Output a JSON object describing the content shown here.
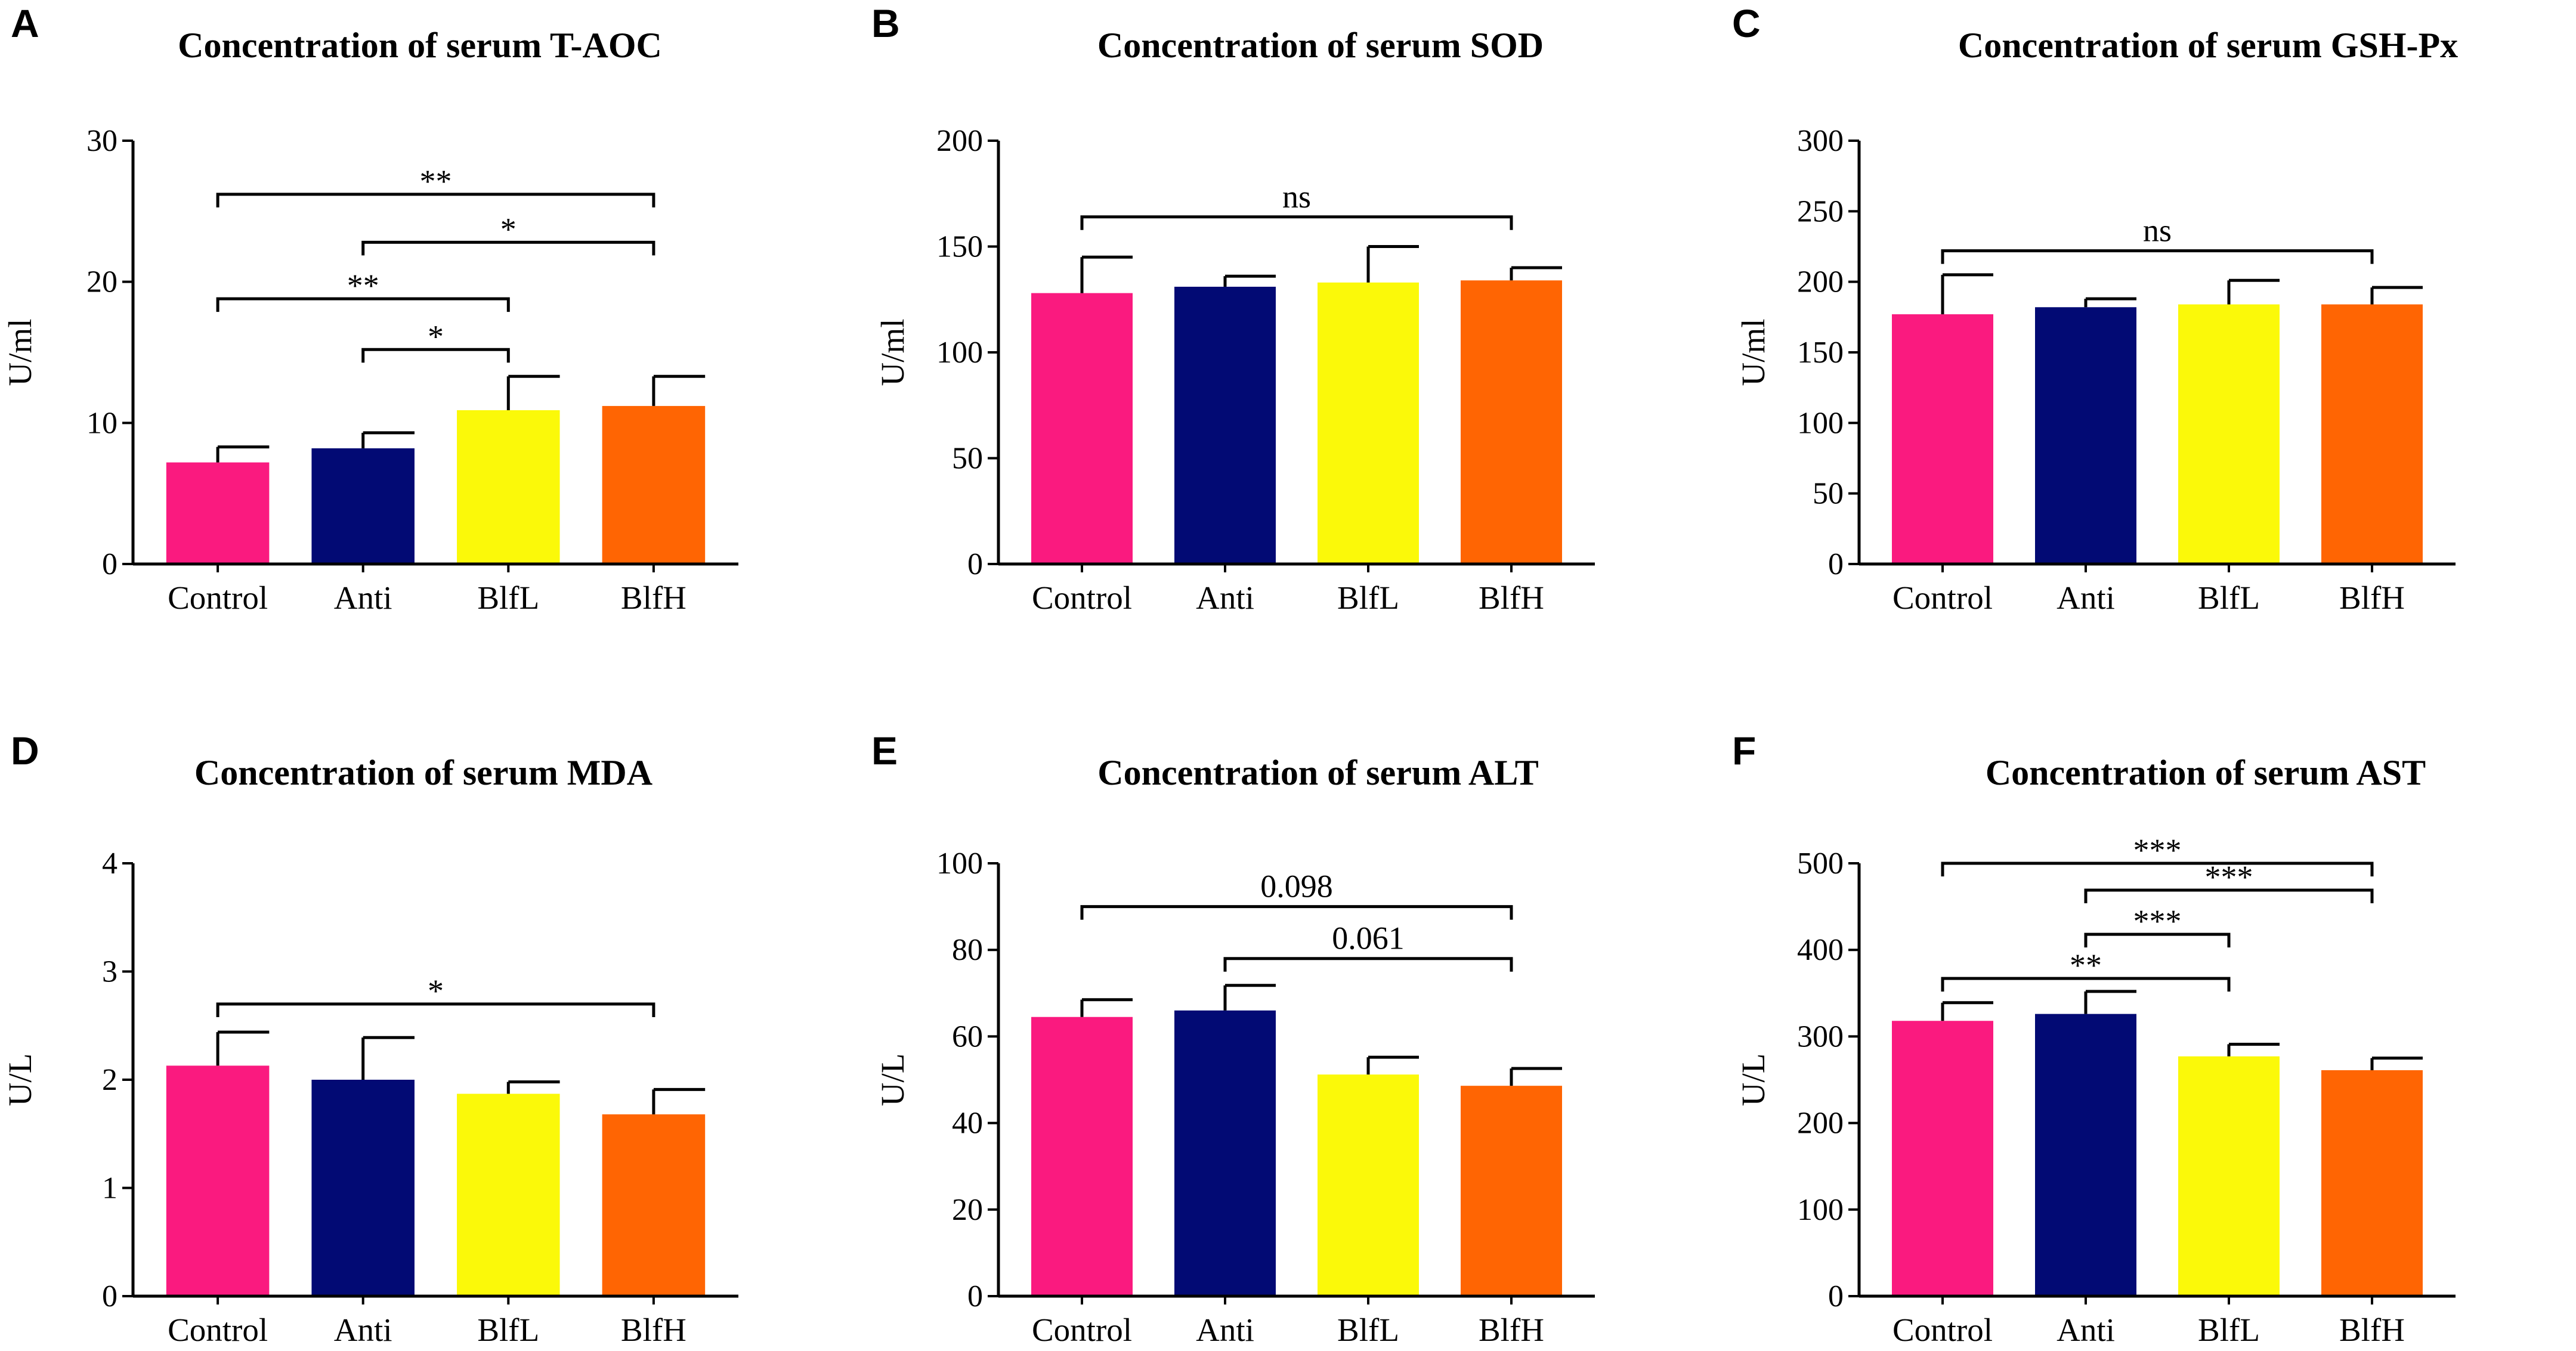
{
  "colors": {
    "Control": "#fa1a7f",
    "Anti": "#020a74",
    "BlfL": "#fbf909",
    "BlfH": "#ff6503"
  },
  "chart_data": [
    {
      "panel": "A",
      "type": "bar",
      "title": "Concentration of serum T-AOC",
      "ylabel": "U/ml",
      "categories": [
        "Control",
        "Anti",
        "BlfL",
        "BlfH"
      ],
      "values": [
        7.2,
        8.2,
        10.9,
        11.2
      ],
      "errors": [
        1.1,
        1.1,
        2.4,
        2.1
      ],
      "ylim": [
        0,
        30
      ],
      "yticks": [
        "0",
        "10",
        "20",
        "30"
      ],
      "significance": [
        {
          "from": 0,
          "to": 3,
          "label": "**",
          "level": 26.2
        },
        {
          "from": 1,
          "to": 3,
          "label": "*",
          "level": 22.8
        },
        {
          "from": 0,
          "to": 2,
          "label": "**",
          "level": 18.8
        },
        {
          "from": 1,
          "to": 2,
          "label": "*",
          "level": 15.2
        }
      ]
    },
    {
      "panel": "B",
      "type": "bar",
      "title": "Concentration of serum SOD",
      "ylabel": "U/ml",
      "categories": [
        "Control",
        "Anti",
        "BlfL",
        "BlfH"
      ],
      "values": [
        128,
        131,
        133,
        134
      ],
      "errors": [
        17,
        5,
        17,
        6
      ],
      "ylim": [
        0,
        200
      ],
      "yticks": [
        "0",
        "50",
        "100",
        "150",
        "200"
      ],
      "significance": [
        {
          "from": 0,
          "to": 3,
          "label": "ns",
          "level": 164
        }
      ]
    },
    {
      "panel": "C",
      "type": "bar",
      "title": "Concentration of serum GSH-Px",
      "ylabel": "U/ml",
      "categories": [
        "Control",
        "Anti",
        "BlfL",
        "BlfH"
      ],
      "values": [
        177,
        182,
        184,
        184
      ],
      "errors": [
        28,
        6,
        17,
        12
      ],
      "ylim": [
        0,
        300
      ],
      "yticks": [
        "0",
        "50",
        "100",
        "150",
        "200",
        "250",
        "300"
      ],
      "significance": [
        {
          "from": 0,
          "to": 3,
          "label": "ns",
          "level": 222
        }
      ]
    },
    {
      "panel": "D",
      "type": "bar",
      "title": "Concentration of serum MDA",
      "ylabel": "U/L",
      "categories": [
        "Control",
        "Anti",
        "BlfL",
        "BlfH"
      ],
      "values": [
        2.13,
        2.0,
        1.87,
        1.68
      ],
      "errors": [
        0.31,
        0.39,
        0.11,
        0.23
      ],
      "ylim": [
        0,
        4
      ],
      "yticks": [
        "0",
        "1",
        "2",
        "3",
        "4"
      ],
      "significance": [
        {
          "from": 0,
          "to": 3,
          "label": "*",
          "level": 2.7
        }
      ]
    },
    {
      "panel": "E",
      "type": "bar",
      "title": "Concentration of serum ALT",
      "ylabel": "U/L",
      "categories": [
        "Control",
        "Anti",
        "BlfL",
        "BlfH"
      ],
      "values": [
        64.5,
        66.0,
        51.2,
        48.6
      ],
      "errors": [
        4.0,
        5.8,
        4.0,
        4.0
      ],
      "ylim": [
        0,
        100
      ],
      "yticks": [
        "0",
        "20",
        "40",
        "60",
        "80",
        "100"
      ],
      "significance": [
        {
          "from": 0,
          "to": 3,
          "label": "0.098",
          "level": 90
        },
        {
          "from": 1,
          "to": 3,
          "label": "0.061",
          "level": 78
        }
      ]
    },
    {
      "panel": "F",
      "type": "bar",
      "title": "Concentration of serum AST",
      "ylabel": "U/L",
      "categories": [
        "Control",
        "Anti",
        "BlfL",
        "BlfH"
      ],
      "values": [
        318,
        326,
        277,
        261
      ],
      "errors": [
        21,
        26,
        14,
        14
      ],
      "ylim": [
        0,
        500
      ],
      "yticks": [
        "0",
        "100",
        "200",
        "300",
        "400",
        "500"
      ],
      "significance": [
        {
          "from": 0,
          "to": 3,
          "label": "***",
          "level": 500
        },
        {
          "from": 1,
          "to": 3,
          "label": "***",
          "level": 469
        },
        {
          "from": 1,
          "to": 2,
          "label": "***",
          "level": 418
        },
        {
          "from": 0,
          "to": 2,
          "label": "**",
          "level": 367
        }
      ]
    }
  ]
}
